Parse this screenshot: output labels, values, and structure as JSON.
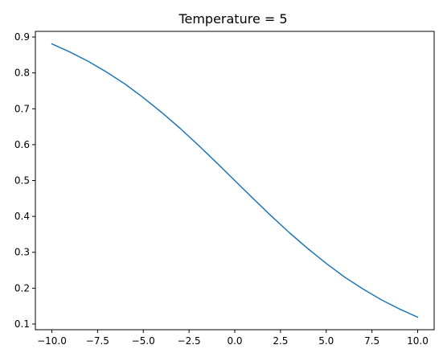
{
  "chart_data": {
    "type": "line",
    "title": "Temperature = 5",
    "xlabel": "",
    "ylabel": "",
    "xlim": [
      -10.9,
      10.9
    ],
    "ylim": [
      0.0842,
      0.9158
    ],
    "x_ticks": [
      -10.0,
      -7.5,
      -5.0,
      -2.5,
      0.0,
      2.5,
      5.0,
      7.5,
      10.0
    ],
    "x_tick_labels": [
      "−10.0",
      "−7.5",
      "−5.0",
      "−2.5",
      "0.0",
      "2.5",
      "5.0",
      "7.5",
      "10.0"
    ],
    "y_ticks": [
      0.1,
      0.2,
      0.3,
      0.4,
      0.5,
      0.6,
      0.7,
      0.8,
      0.9
    ],
    "y_tick_labels": [
      "0.1",
      "0.2",
      "0.3",
      "0.4",
      "0.5",
      "0.6",
      "0.7",
      "0.8",
      "0.9"
    ],
    "grid": false,
    "line_color": "#1f77b4",
    "series": [
      {
        "x": [
          -10,
          -9,
          -8,
          -7,
          -6,
          -5,
          -4,
          -3,
          -2,
          -1,
          0,
          1,
          2,
          3,
          4,
          5,
          6,
          7,
          8,
          9,
          10
        ],
        "y": [
          0.881,
          0.858,
          0.832,
          0.802,
          0.769,
          0.731,
          0.69,
          0.646,
          0.599,
          0.55,
          0.5,
          0.45,
          0.401,
          0.354,
          0.31,
          0.269,
          0.231,
          0.198,
          0.168,
          0.142,
          0.119
        ]
      }
    ]
  }
}
